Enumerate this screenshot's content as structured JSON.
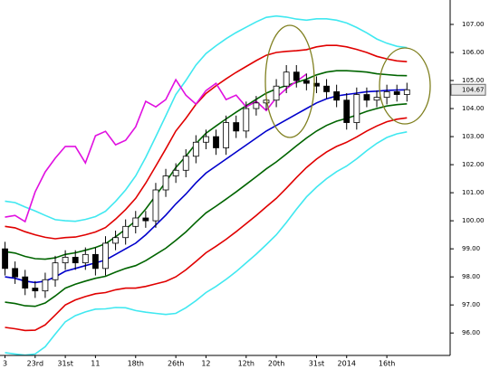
{
  "chart_data": {
    "type": "candlestick",
    "categories": [
      "3",
      null,
      null,
      "23rd",
      null,
      null,
      "31st",
      null,
      null,
      "11",
      null,
      null,
      null,
      "18th",
      null,
      null,
      null,
      "26th",
      null,
      null,
      "12",
      null,
      null,
      null,
      "12th",
      null,
      null,
      "20th",
      null,
      null,
      null,
      "31st",
      null,
      null,
      "2014",
      null,
      null,
      null,
      "16th",
      null,
      null
    ],
    "xlim": [
      -0.5,
      44.3
    ],
    "ylim": [
      95.2,
      107.87
    ],
    "yticks": [
      {
        "value": 96,
        "label": "96.00"
      },
      {
        "value": 97,
        "label": "97.00"
      },
      {
        "value": 98,
        "label": "98.00"
      },
      {
        "value": 99,
        "label": "99.00"
      },
      {
        "value": 100,
        "label": "100.00"
      },
      {
        "value": 101,
        "label": "101.00"
      },
      {
        "value": 102,
        "label": "102.00"
      },
      {
        "value": 103,
        "label": "103.00"
      },
      {
        "value": 104,
        "label": "104.00"
      },
      {
        "value": 105,
        "label": "105.00"
      },
      {
        "value": 106,
        "label": "106.00"
      },
      {
        "value": 107,
        "label": "107.00"
      }
    ],
    "last_price": 104.67,
    "up_color": "#ffffff",
    "down_color": "#000000",
    "open": [
      99.0,
      98.3,
      98.0,
      97.6,
      97.5,
      97.9,
      98.5,
      98.7,
      98.5,
      98.8,
      98.3,
      99.2,
      99.4,
      99.8,
      100.1,
      100.0,
      101.1,
      101.6,
      101.8,
      102.3,
      102.8,
      103.0,
      102.6,
      103.5,
      103.2,
      104.0,
      104.2,
      104.3,
      104.8,
      105.3,
      105.0,
      104.9,
      104.8,
      104.6,
      104.3,
      103.5,
      104.5,
      104.3,
      104.4,
      104.6,
      104.5
    ],
    "high": [
      99.25,
      98.55,
      98.25,
      97.85,
      98.15,
      98.75,
      98.95,
      98.95,
      99.05,
      99.05,
      99.45,
      99.65,
      100.05,
      100.35,
      100.35,
      101.35,
      101.85,
      102.05,
      102.55,
      103.05,
      103.25,
      103.25,
      103.75,
      103.75,
      104.25,
      104.45,
      104.55,
      105.05,
      105.55,
      105.55,
      105.25,
      105.15,
      105.05,
      104.85,
      104.55,
      104.75,
      104.75,
      104.65,
      104.85,
      104.85,
      104.92
    ],
    "low": [
      98.05,
      97.75,
      97.35,
      97.25,
      97.25,
      97.65,
      98.25,
      98.25,
      98.25,
      98.05,
      98.05,
      98.95,
      99.15,
      99.55,
      99.75,
      99.75,
      100.85,
      101.35,
      101.55,
      102.05,
      102.55,
      102.35,
      102.35,
      102.95,
      102.95,
      103.75,
      103.95,
      104.05,
      104.55,
      104.75,
      104.65,
      104.55,
      104.35,
      104.05,
      103.25,
      103.25,
      104.05,
      104.05,
      104.15,
      104.25,
      104.25
    ],
    "close": [
      98.3,
      98.0,
      97.6,
      97.5,
      97.9,
      98.5,
      98.7,
      98.5,
      98.8,
      98.3,
      99.2,
      99.4,
      99.8,
      100.1,
      100.0,
      101.1,
      101.6,
      101.8,
      102.3,
      102.8,
      103.0,
      102.6,
      103.5,
      103.2,
      104.0,
      104.2,
      104.3,
      104.8,
      105.3,
      105.0,
      104.9,
      104.8,
      104.6,
      104.3,
      103.5,
      104.5,
      104.3,
      104.4,
      104.6,
      104.5,
      104.67
    ],
    "series": [
      {
        "color": "#40e8f0",
        "values": [
          100.7,
          100.65,
          100.49,
          100.35,
          100.19,
          100.04,
          100.0,
          99.98,
          100.05,
          100.15,
          100.34,
          100.69,
          101.1,
          101.6,
          102.26,
          103.0,
          103.74,
          104.5,
          105.0,
          105.55,
          105.96,
          106.24,
          106.49,
          106.71,
          106.9,
          107.09,
          107.25,
          107.3,
          107.26,
          107.19,
          107.15,
          107.2,
          107.2,
          107.15,
          107.05,
          106.89,
          106.7,
          106.48,
          106.33,
          106.22,
          106.17
        ]
      },
      {
        "color": "#40e8f0",
        "values": [
          95.3,
          95.25,
          95.21,
          95.25,
          95.51,
          95.96,
          96.4,
          96.62,
          96.75,
          96.85,
          96.86,
          96.91,
          96.9,
          96.8,
          96.74,
          96.7,
          96.66,
          96.7,
          96.9,
          97.15,
          97.44,
          97.66,
          97.91,
          98.19,
          98.5,
          98.81,
          99.15,
          99.5,
          99.94,
          100.41,
          100.85,
          101.2,
          101.5,
          101.75,
          101.95,
          102.21,
          102.5,
          102.76,
          102.97,
          103.1,
          103.17
        ]
      },
      {
        "color": "#e00000",
        "values": [
          99.8,
          99.75,
          99.61,
          99.5,
          99.41,
          99.36,
          99.4,
          99.42,
          99.5,
          99.6,
          99.76,
          100.06,
          100.4,
          100.8,
          101.34,
          101.95,
          102.56,
          103.2,
          103.65,
          104.15,
          104.54,
          104.81,
          105.06,
          105.29,
          105.5,
          105.71,
          105.9,
          106.0,
          106.04,
          106.06,
          106.1,
          106.2,
          106.25,
          106.25,
          106.2,
          106.11,
          106.0,
          105.86,
          105.77,
          105.7,
          105.67
        ]
      },
      {
        "color": "#e00000",
        "values": [
          96.2,
          96.15,
          96.09,
          96.1,
          96.29,
          96.64,
          97.0,
          97.18,
          97.3,
          97.4,
          97.44,
          97.54,
          97.6,
          97.6,
          97.66,
          97.75,
          97.84,
          98.0,
          98.25,
          98.55,
          98.86,
          99.09,
          99.34,
          99.61,
          99.9,
          100.19,
          100.5,
          100.8,
          101.16,
          101.54,
          101.9,
          102.2,
          102.45,
          102.65,
          102.8,
          102.99,
          103.2,
          103.38,
          103.53,
          103.62,
          103.67
        ]
      },
      {
        "color": "#006400",
        "values": [
          98.9,
          98.85,
          98.73,
          98.65,
          98.63,
          98.68,
          98.8,
          98.86,
          98.95,
          99.05,
          99.18,
          99.43,
          99.7,
          100.0,
          100.42,
          100.9,
          101.38,
          101.9,
          102.3,
          102.75,
          103.12,
          103.38,
          103.63,
          103.87,
          104.1,
          104.33,
          104.55,
          104.7,
          104.82,
          104.93,
          105.05,
          105.2,
          105.3,
          105.35,
          105.35,
          105.33,
          105.3,
          105.24,
          105.21,
          105.18,
          105.17
        ]
      },
      {
        "color": "#006400",
        "values": [
          97.1,
          97.05,
          96.97,
          96.95,
          97.07,
          97.32,
          97.6,
          97.74,
          97.85,
          97.95,
          98.02,
          98.17,
          98.3,
          98.4,
          98.58,
          98.8,
          99.02,
          99.3,
          99.6,
          99.95,
          100.28,
          100.52,
          100.77,
          101.03,
          101.3,
          101.57,
          101.85,
          102.1,
          102.38,
          102.67,
          102.95,
          103.2,
          103.4,
          103.55,
          103.65,
          103.77,
          103.9,
          104.0,
          104.09,
          104.14,
          104.17
        ]
      },
      {
        "color": "#0000cc",
        "values": [
          98.0,
          97.95,
          97.85,
          97.8,
          97.85,
          98.0,
          98.2,
          98.3,
          98.4,
          98.5,
          98.6,
          98.8,
          99.0,
          99.2,
          99.5,
          99.85,
          100.2,
          100.6,
          100.95,
          101.35,
          101.7,
          101.95,
          102.2,
          102.45,
          102.7,
          102.95,
          103.2,
          103.4,
          103.6,
          103.8,
          104.0,
          104.2,
          104.35,
          104.45,
          104.5,
          104.55,
          104.6,
          104.62,
          104.65,
          104.66,
          104.67
        ]
      },
      {
        "color": "#e010e0",
        "values": [
          100.13,
          100.19,
          99.97,
          101.03,
          101.74,
          102.23,
          102.65,
          102.65,
          102.06,
          103.03,
          103.19,
          102.71,
          102.87,
          103.35,
          104.26,
          104.06,
          104.32,
          105.03,
          104.48,
          104.16,
          104.64,
          104.9,
          104.32,
          104.48,
          104.06,
          104.26,
          103.93,
          104.39,
          104.71,
          104.97,
          105.23,
          null,
          null,
          null,
          null,
          null,
          null,
          null,
          null,
          null,
          null
        ]
      }
    ]
  }
}
